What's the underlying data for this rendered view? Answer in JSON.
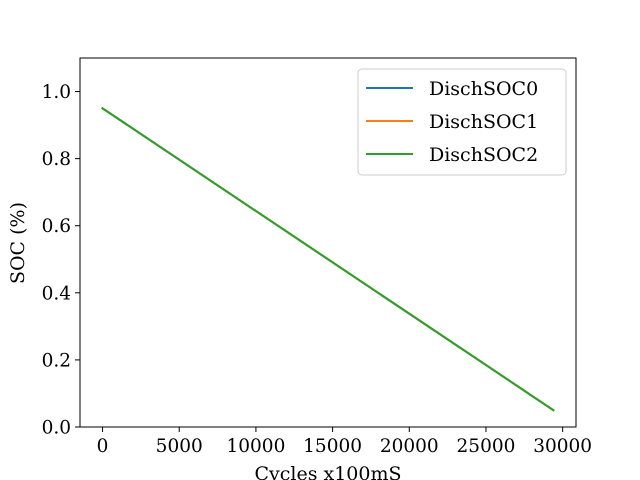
{
  "chart_data": {
    "type": "line",
    "title": "",
    "xlabel": "Cycles x100mS",
    "ylabel": "SOC (%)",
    "xlim": [
      -1470,
      30870
    ],
    "ylim": [
      0,
      1.1
    ],
    "x_ticks": [
      0,
      5000,
      10000,
      15000,
      20000,
      25000,
      30000
    ],
    "x_tick_labels": [
      "0",
      "5000",
      "10000",
      "15000",
      "20000",
      "25000",
      "30000"
    ],
    "y_ticks": [
      0.0,
      0.2,
      0.4,
      0.6,
      0.8,
      1.0
    ],
    "y_tick_labels": [
      "0.0",
      "0.2",
      "0.4",
      "0.6",
      "0.8",
      "1.0"
    ],
    "grid": false,
    "legend_position": "top-right",
    "series": [
      {
        "name": "DischSOC0",
        "color": "#1f77b4",
        "x": [
          0,
          29400
        ],
        "y": [
          0.95,
          0.05
        ]
      },
      {
        "name": "DischSOC1",
        "color": "#ff7f0e",
        "x": [
          0,
          29400
        ],
        "y": [
          0.95,
          0.05
        ]
      },
      {
        "name": "DischSOC2",
        "color": "#2ca02c",
        "x": [
          0,
          29400
        ],
        "y": [
          0.95,
          0.05
        ]
      }
    ]
  }
}
